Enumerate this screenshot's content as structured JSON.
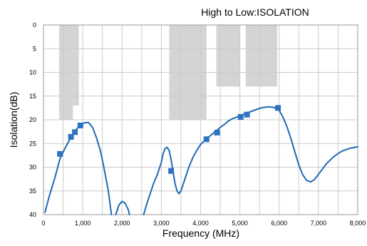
{
  "chart_data": {
    "type": "line",
    "title": "High to Low:ISOLATION",
    "xlabel": "Frequency (MHz)",
    "ylabel": "Isolation(dB)",
    "xlim": [
      0,
      8000
    ],
    "ylim": [
      0,
      40
    ],
    "y_inverted": true,
    "grid": true,
    "x_ticks": [
      0,
      1000,
      2000,
      3000,
      4000,
      5000,
      6000,
      7000,
      8000
    ],
    "x_tick_labels": [
      "0",
      "1,000",
      "2,000",
      "3,000",
      "4,000",
      "5,000",
      "6,000",
      "7,000",
      "8,000"
    ],
    "y_ticks": [
      0,
      5,
      10,
      15,
      20,
      25,
      30,
      35,
      40
    ],
    "y_tick_labels": [
      "0",
      "5",
      "10",
      "15",
      "20",
      "25",
      "30",
      "35",
      "40"
    ],
    "colors": {
      "line": "#1f6ab5",
      "marker": "#2e73c0",
      "band": "#d4d4d4",
      "grid": "#cccccc"
    },
    "spec_bands": [
      {
        "x0": 400,
        "x1": 750,
        "y0": 0,
        "y1": 20
      },
      {
        "x0": 750,
        "x1": 900,
        "y0": 0,
        "y1": 17
      },
      {
        "x0": 3200,
        "x1": 4150,
        "y0": 0,
        "y1": 20
      },
      {
        "x0": 4400,
        "x1": 5000,
        "y0": 0,
        "y1": 13
      },
      {
        "x0": 5150,
        "x1": 5950,
        "y0": 0,
        "y1": 13
      }
    ],
    "series": [
      {
        "segments": [
          [
            [
              40,
              39.5
            ],
            [
              150,
              36
            ],
            [
              300,
              32
            ],
            [
              420,
              28.2
            ],
            [
              550,
              26
            ],
            [
              680,
              24
            ],
            [
              780,
              22.7
            ],
            [
              880,
              21.6
            ],
            [
              960,
              21.1
            ],
            [
              1050,
              20.6
            ],
            [
              1150,
              20.6
            ],
            [
              1250,
              21.6
            ],
            [
              1350,
              23.8
            ],
            [
              1450,
              26.5
            ],
            [
              1550,
              30.5
            ],
            [
              1650,
              35
            ],
            [
              1730,
              40
            ]
          ],
          [
            [
              1840,
              40
            ],
            [
              1920,
              38
            ],
            [
              2000,
              37.2
            ],
            [
              2080,
              37.6
            ],
            [
              2160,
              39
            ],
            [
              2190,
              40
            ]
          ],
          [
            [
              2550,
              40
            ],
            [
              2620,
              38
            ],
            [
              2700,
              36
            ],
            [
              2800,
              33.5
            ],
            [
              2900,
              31.5
            ],
            [
              3000,
              29
            ],
            [
              3050,
              27
            ],
            [
              3100,
              26
            ],
            [
              3150,
              25.8
            ],
            [
              3200,
              26.5
            ],
            [
              3250,
              28.5
            ],
            [
              3300,
              31
            ],
            [
              3350,
              33.5
            ],
            [
              3400,
              35
            ],
            [
              3450,
              35.6
            ],
            [
              3500,
              35
            ],
            [
              3600,
              32.5
            ],
            [
              3700,
              30
            ],
            [
              3800,
              28
            ],
            [
              3900,
              26.5
            ],
            [
              4000,
              25.2
            ],
            [
              4100,
              24.4
            ],
            [
              4200,
              23.7
            ],
            [
              4300,
              23
            ],
            [
              4400,
              22.3
            ],
            [
              4500,
              21.6
            ],
            [
              4600,
              21
            ],
            [
              4700,
              20.3
            ],
            [
              4800,
              19.8
            ],
            [
              4900,
              19.5
            ],
            [
              5000,
              19.2
            ],
            [
              5100,
              18.8
            ],
            [
              5200,
              18.5
            ],
            [
              5300,
              18.2
            ],
            [
              5400,
              17.9
            ],
            [
              5500,
              17.6
            ],
            [
              5600,
              17.4
            ],
            [
              5700,
              17.3
            ],
            [
              5800,
              17.3
            ],
            [
              5900,
              17.5
            ],
            [
              6000,
              18
            ],
            [
              6100,
              19.5
            ],
            [
              6200,
              21.5
            ],
            [
              6300,
              24
            ],
            [
              6400,
              26.8
            ],
            [
              6500,
              29.5
            ],
            [
              6600,
              31.6
            ],
            [
              6700,
              32.8
            ],
            [
              6800,
              33.1
            ],
            [
              6900,
              32.6
            ],
            [
              7000,
              31.5
            ],
            [
              7200,
              29.3
            ],
            [
              7400,
              27.7
            ],
            [
              7600,
              26.6
            ],
            [
              7800,
              26
            ],
            [
              8000,
              25.7
            ]
          ]
        ]
      }
    ],
    "markers": [
      [
        420,
        27.2
      ],
      [
        700,
        23.6
      ],
      [
        800,
        22.6
      ],
      [
        940,
        21.2
      ],
      [
        3250,
        30.8
      ],
      [
        4150,
        24.1
      ],
      [
        4420,
        22.7
      ],
      [
        5020,
        19.4
      ],
      [
        5180,
        18.9
      ],
      [
        5970,
        17.5
      ]
    ]
  }
}
